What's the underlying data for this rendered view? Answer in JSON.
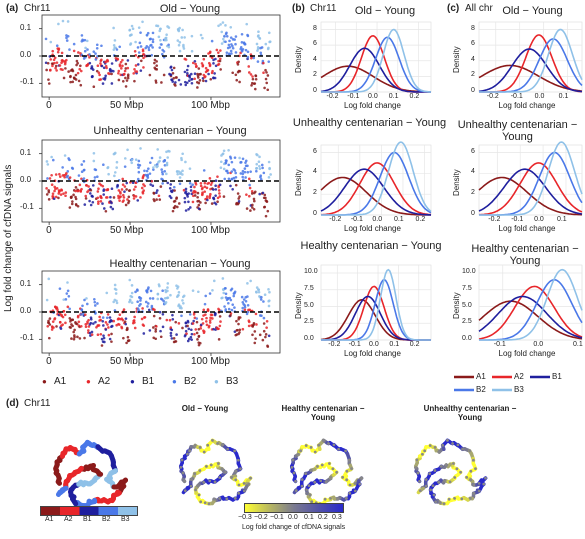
{
  "panels": {
    "a_label": "(a)",
    "b_label": "(b)",
    "c_label": "(c)",
    "d_label": "(d)",
    "chr_a": "Chr11",
    "chr_b": "Chr11",
    "chr_c": "All chr",
    "chr_d": "Chr11"
  },
  "colors": {
    "A1": "#8b1a1a",
    "A2": "#e8262a",
    "B1": "#1f1f9e",
    "B2": "#4a78e8",
    "B3": "#8fc1e8"
  },
  "compartments": [
    "A1",
    "A2",
    "B1",
    "B2",
    "B3"
  ],
  "chart_data": [
    {
      "type": "scatter",
      "panel": "a",
      "title": "Old − Young",
      "ylabel": "Log fold change of cfDNA signals",
      "xlabel": "",
      "x_ticks": [
        "0",
        "50 Mbp",
        "100 Mbp"
      ],
      "y_ticks": [
        "0.1",
        "0.0",
        "-0.1"
      ],
      "ylim": [
        -0.15,
        0.15
      ],
      "reference_line": 0.0
    },
    {
      "type": "scatter",
      "panel": "a",
      "title": "Unhealthy centenarian − Young",
      "x_ticks": [
        "0",
        "50 Mbp",
        "100 Mbp"
      ],
      "y_ticks": [
        "0.1",
        "0.0",
        "-0.1"
      ],
      "ylim": [
        -0.15,
        0.15
      ],
      "reference_line": 0.0
    },
    {
      "type": "scatter",
      "panel": "a",
      "title": "Healthy centenarian − Young",
      "x_ticks": [
        "0",
        "50 Mbp",
        "100 Mbp"
      ],
      "y_ticks": [
        "0.1",
        "0.0",
        "-0.1"
      ],
      "ylim": [
        -0.15,
        0.15
      ],
      "reference_line": 0.0,
      "legend": [
        "A1",
        "A2",
        "B1",
        "B2",
        "B3"
      ]
    },
    {
      "type": "line",
      "panel": "b",
      "title": "Old − Young",
      "xlabel": "Log fold change",
      "ylabel": "Density",
      "x_ticks": [
        "-0.2",
        "-0.1",
        "0.0",
        "0.1",
        "0.2"
      ],
      "y_ticks": [
        "0",
        "2",
        "4",
        "6",
        "8"
      ],
      "series": [
        {
          "name": "A1",
          "peak_x": -0.14,
          "peak_y": 3.3
        },
        {
          "name": "A2",
          "peak_x": -0.02,
          "peak_y": 7.2
        },
        {
          "name": "B1",
          "peak_x": -0.06,
          "peak_y": 5.6
        },
        {
          "name": "B2",
          "peak_x": 0.05,
          "peak_y": 7.0
        },
        {
          "name": "B3",
          "peak_x": 0.08,
          "peak_y": 8.0
        }
      ]
    },
    {
      "type": "line",
      "panel": "b",
      "title": "Unhealthy centenarian − Young",
      "xlabel": "Log fold change",
      "ylabel": "Density",
      "x_ticks": [
        "-0.2",
        "-0.1",
        "0.0",
        "0.1",
        "0.2"
      ],
      "y_ticks": [
        "0",
        "2",
        "4",
        "6"
      ],
      "series": [
        {
          "name": "A1",
          "peak_x": -0.18,
          "peak_y": 3.6
        },
        {
          "name": "A2",
          "peak_x": -0.02,
          "peak_y": 5.0
        },
        {
          "name": "B1",
          "peak_x": -0.08,
          "peak_y": 4.4
        },
        {
          "name": "B2",
          "peak_x": 0.06,
          "peak_y": 6.0
        },
        {
          "name": "B3",
          "peak_x": 0.09,
          "peak_y": 7.0
        }
      ]
    },
    {
      "type": "line",
      "panel": "b",
      "title": "Healthy centenarian − Young",
      "xlabel": "Log fold change",
      "ylabel": "Density",
      "x_ticks": [
        "-0.2",
        "-0.1",
        "0.0",
        "0.1",
        "0.2"
      ],
      "y_ticks": [
        "0.0",
        "2.5",
        "5.0",
        "7.5",
        "10.0"
      ],
      "series": [
        {
          "name": "A1",
          "peak_x": -0.08,
          "peak_y": 6.0
        },
        {
          "name": "A2",
          "peak_x": -0.02,
          "peak_y": 8.0
        },
        {
          "name": "B1",
          "peak_x": -0.05,
          "peak_y": 6.5
        },
        {
          "name": "B2",
          "peak_x": 0.03,
          "peak_y": 9.0
        },
        {
          "name": "B3",
          "peak_x": 0.05,
          "peak_y": 10.5
        }
      ]
    },
    {
      "type": "line",
      "panel": "c",
      "title": "Old − Young",
      "xlabel": "Log fold change",
      "ylabel": "Density",
      "x_ticks": [
        "-0.2",
        "-0.1",
        "0.0",
        "0.1"
      ],
      "y_ticks": [
        "0",
        "2",
        "4",
        "6",
        "8"
      ],
      "series": [
        {
          "name": "A1",
          "peak_x": -0.14,
          "peak_y": 3.4
        },
        {
          "name": "A2",
          "peak_x": -0.02,
          "peak_y": 7.3
        },
        {
          "name": "B1",
          "peak_x": -0.06,
          "peak_y": 5.5
        },
        {
          "name": "B2",
          "peak_x": 0.04,
          "peak_y": 6.8
        },
        {
          "name": "B3",
          "peak_x": 0.07,
          "peak_y": 8.0
        }
      ]
    },
    {
      "type": "line",
      "panel": "c",
      "title": "Unhealthy centenarian − Young",
      "xlabel": "Log fold change",
      "ylabel": "Density",
      "x_ticks": [
        "-0.2",
        "-0.1",
        "0.0",
        "0.1"
      ],
      "y_ticks": [
        "0",
        "2",
        "4",
        "6"
      ],
      "series": [
        {
          "name": "A1",
          "peak_x": -0.18,
          "peak_y": 3.6
        },
        {
          "name": "A2",
          "peak_x": -0.02,
          "peak_y": 5.0
        },
        {
          "name": "B1",
          "peak_x": -0.08,
          "peak_y": 4.4
        },
        {
          "name": "B2",
          "peak_x": 0.05,
          "peak_y": 6.0
        },
        {
          "name": "B3",
          "peak_x": 0.08,
          "peak_y": 7.0
        }
      ]
    },
    {
      "type": "line",
      "panel": "c",
      "title": "Healthy centenarian − Young",
      "xlabel": "Log fold change",
      "ylabel": "Density",
      "x_ticks": [
        "-0.1",
        "0.0",
        "0.1"
      ],
      "y_ticks": [
        "0.0",
        "2.5",
        "5.0",
        "7.5",
        "10.0"
      ],
      "series": [
        {
          "name": "A1",
          "peak_x": -0.08,
          "peak_y": 5.8
        },
        {
          "name": "A2",
          "peak_x": -0.02,
          "peak_y": 8.0
        },
        {
          "name": "B1",
          "peak_x": -0.05,
          "peak_y": 6.5
        },
        {
          "name": "B2",
          "peak_x": 0.03,
          "peak_y": 9.0
        },
        {
          "name": "B3",
          "peak_x": 0.05,
          "peak_y": 10.5
        }
      ]
    }
  ],
  "panel_d": {
    "titles": [
      "Old − Young",
      "Healthy centenarian −\nYoung",
      "Unhealthy centenarian −\nYoung"
    ],
    "compartment_legend": [
      "A1",
      "A2",
      "B1",
      "B2",
      "B3"
    ],
    "colorbar_ticks": [
      "−0.3",
      "−0.2",
      "−0.1",
      "0.0",
      "0.1",
      "0.2",
      "0.3"
    ],
    "colorbar_label": "Log fold change of cfDNA signals"
  }
}
